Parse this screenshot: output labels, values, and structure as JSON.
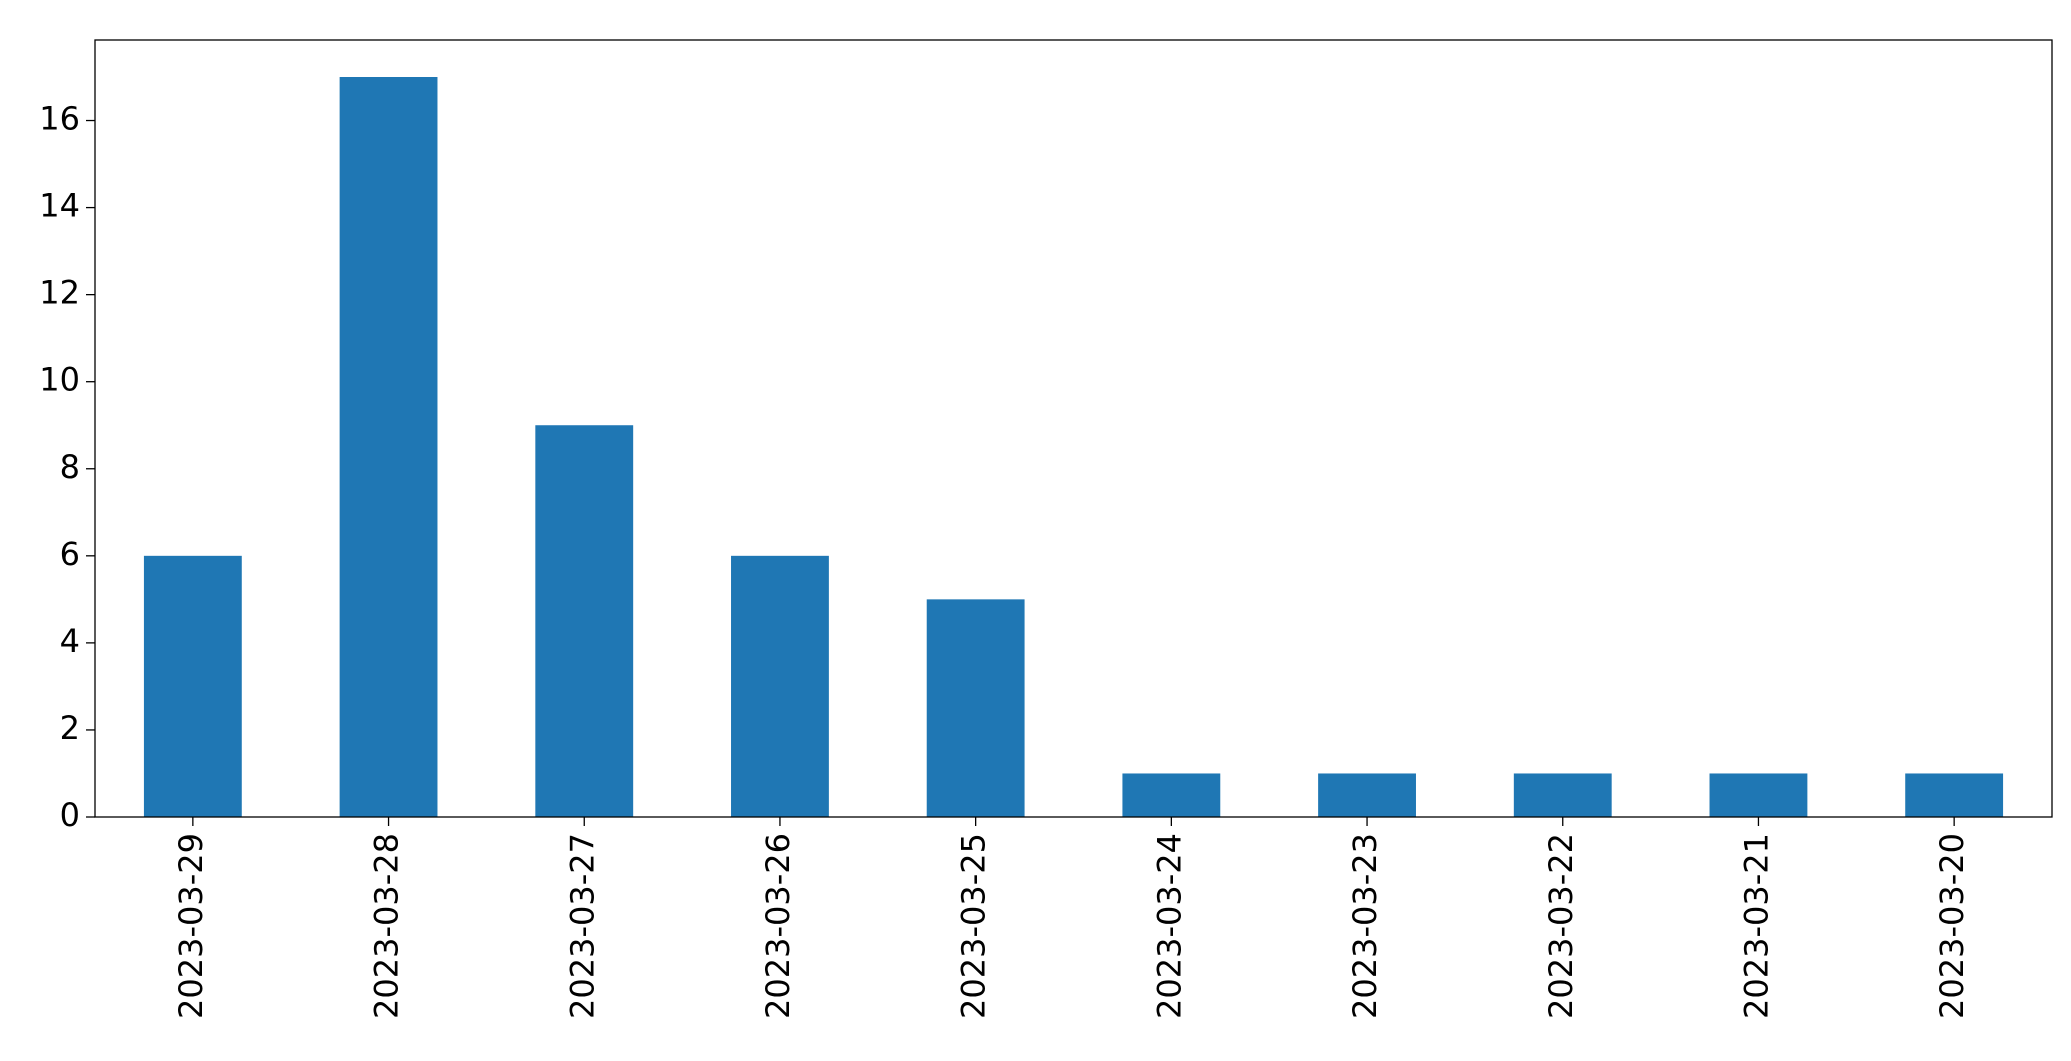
{
  "chart_data": {
    "type": "bar",
    "categories": [
      "2023-03-29",
      "2023-03-28",
      "2023-03-27",
      "2023-03-26",
      "2023-03-25",
      "2023-03-24",
      "2023-03-23",
      "2023-03-22",
      "2023-03-21",
      "2023-03-20"
    ],
    "values": [
      6,
      17,
      9,
      6,
      5,
      1,
      1,
      1,
      1,
      1
    ],
    "color": "#1f77b4",
    "ylim": [
      0,
      17.85
    ],
    "yticks": [
      0,
      2,
      4,
      6,
      8,
      10,
      12,
      14,
      16
    ],
    "grid": false
  }
}
